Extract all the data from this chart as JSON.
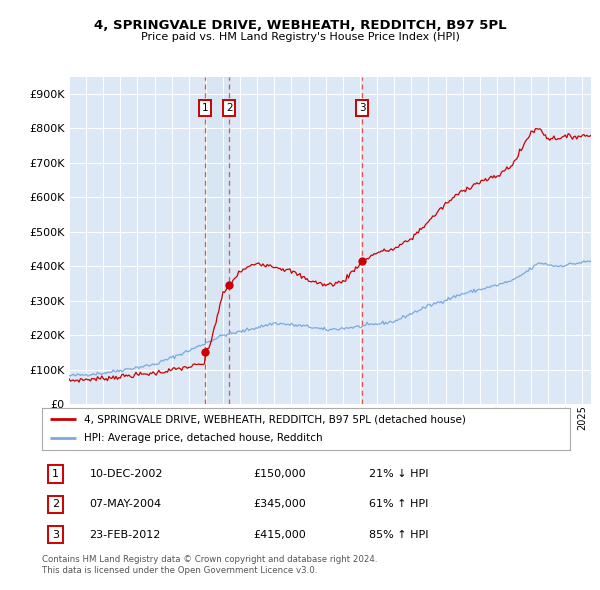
{
  "title_line1": "4, SPRINGVALE DRIVE, WEBHEATH, REDDITCH, B97 5PL",
  "title_line2": "Price paid vs. HM Land Registry's House Price Index (HPI)",
  "legend_label1": "4, SPRINGVALE DRIVE, WEBHEATH, REDDITCH, B97 5PL (detached house)",
  "legend_label2": "HPI: Average price, detached house, Redditch",
  "footer1": "Contains HM Land Registry data © Crown copyright and database right 2024.",
  "footer2": "This data is licensed under the Open Government Licence v3.0.",
  "transactions": [
    {
      "num": 1,
      "date": "10-DEC-2002",
      "price": "£150,000",
      "pct": "21% ↓ HPI",
      "x_year": 2002.94,
      "y_val": 150000
    },
    {
      "num": 2,
      "date": "07-MAY-2004",
      "price": "£345,000",
      "pct": "61% ↑ HPI",
      "x_year": 2004.36,
      "y_val": 345000
    },
    {
      "num": 3,
      "date": "23-FEB-2012",
      "price": "£415,000",
      "pct": "85% ↑ HPI",
      "x_year": 2012.13,
      "y_val": 415000
    }
  ],
  "price_line_color": "#cc0000",
  "hpi_line_color": "#7aaadd",
  "dashed_line_color": "#dd4444",
  "plot_bg_color": "#dce8f5",
  "ylim": [
    0,
    950000
  ],
  "xlim_start": 1995.0,
  "xlim_end": 2025.5
}
